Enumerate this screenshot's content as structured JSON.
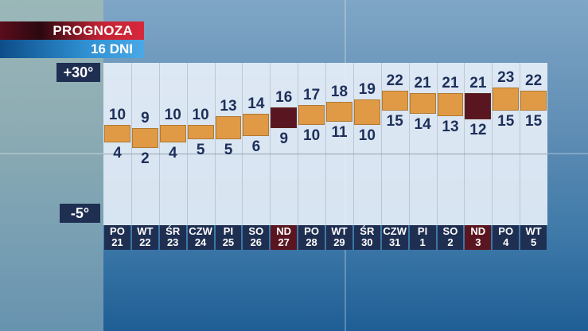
{
  "header": {
    "title": "PROGNOZA",
    "subtitle": "16 DNI"
  },
  "scale": {
    "max_label": "+30°",
    "min_label": "-5°"
  },
  "colors": {
    "bar_normal": "#e09a45",
    "bar_sunday": "#5a1620",
    "day_normal": "#1f2f52",
    "day_sunday": "#5a1620",
    "text": "#1d2f5a"
  },
  "chart_data": {
    "type": "bar",
    "ylim": [
      -5,
      30
    ],
    "days": [
      {
        "name": "PO",
        "date": "21",
        "high": 10,
        "low": 4,
        "sunday": false
      },
      {
        "name": "WT",
        "date": "22",
        "high": 9,
        "low": 2,
        "sunday": false
      },
      {
        "name": "ŚR",
        "date": "23",
        "high": 10,
        "low": 4,
        "sunday": false
      },
      {
        "name": "CZW",
        "date": "24",
        "high": 10,
        "low": 5,
        "sunday": false
      },
      {
        "name": "PI",
        "date": "25",
        "high": 13,
        "low": 5,
        "sunday": false
      },
      {
        "name": "SO",
        "date": "26",
        "high": 14,
        "low": 6,
        "sunday": false
      },
      {
        "name": "ND",
        "date": "27",
        "high": 16,
        "low": 9,
        "sunday": true
      },
      {
        "name": "PO",
        "date": "28",
        "high": 17,
        "low": 10,
        "sunday": false
      },
      {
        "name": "WT",
        "date": "29",
        "high": 18,
        "low": 11,
        "sunday": false
      },
      {
        "name": "ŚR",
        "date": "30",
        "high": 19,
        "low": 10,
        "sunday": false
      },
      {
        "name": "CZW",
        "date": "31",
        "high": 22,
        "low": 15,
        "sunday": false
      },
      {
        "name": "PI",
        "date": "1",
        "high": 21,
        "low": 14,
        "sunday": false
      },
      {
        "name": "SO",
        "date": "2",
        "high": 21,
        "low": 13,
        "sunday": false
      },
      {
        "name": "ND",
        "date": "3",
        "high": 21,
        "low": 12,
        "sunday": true
      },
      {
        "name": "PO",
        "date": "4",
        "high": 23,
        "low": 15,
        "sunday": false
      },
      {
        "name": "WT",
        "date": "5",
        "high": 22,
        "low": 15,
        "sunday": false
      }
    ]
  }
}
